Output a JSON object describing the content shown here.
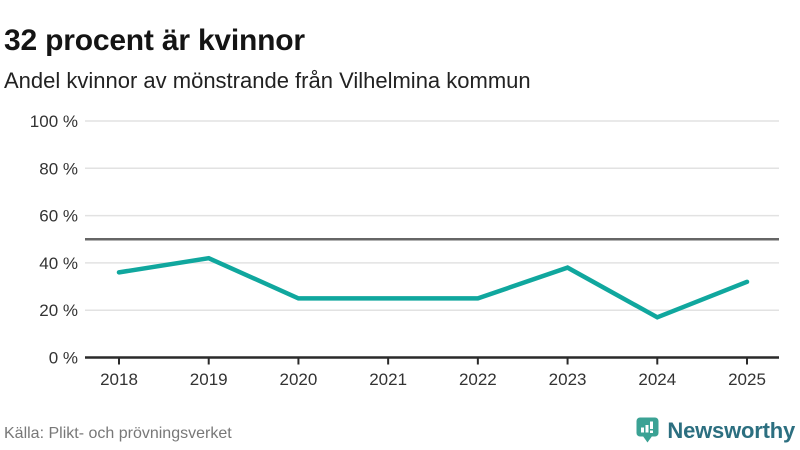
{
  "header": {
    "title": "32 procent är kvinnor",
    "subtitle": "Andel kvinnor av mönstrande från Vilhelmina kommun"
  },
  "chart_data": {
    "type": "line",
    "title": "32 procent är kvinnor",
    "subtitle": "Andel kvinnor av mönstrande från Vilhelmina kommun",
    "categories": [
      "2018",
      "2019",
      "2020",
      "2021",
      "2022",
      "2023",
      "2024",
      "2025"
    ],
    "series": [
      {
        "name": "Andel kvinnor av mönstrande (%)",
        "values": [
          36,
          42,
          25,
          25,
          25,
          38,
          17,
          32
        ]
      }
    ],
    "ylim": [
      0,
      100
    ],
    "yticks": [
      0,
      20,
      40,
      60,
      80,
      100
    ],
    "ytick_labels": [
      "0 %",
      "20 %",
      "40 %",
      "60 %",
      "80 %",
      "100 %"
    ],
    "reference_line": 50,
    "grid": true,
    "legend": "none",
    "colors": {
      "line": "#10a79e",
      "grid": "#e2e2e2",
      "reference": "#666666",
      "axis": "#2a2a2a",
      "tick_label": "#333333"
    }
  },
  "footer": {
    "source": "Källa: Plikt- och prövningsverket",
    "brand": "Newsworthy"
  },
  "logo": {
    "icon": "bar-chart-pin-icon",
    "badge_color": "#3ba294",
    "bar_color": "#ffffff",
    "text_color": "#2c6f80"
  }
}
